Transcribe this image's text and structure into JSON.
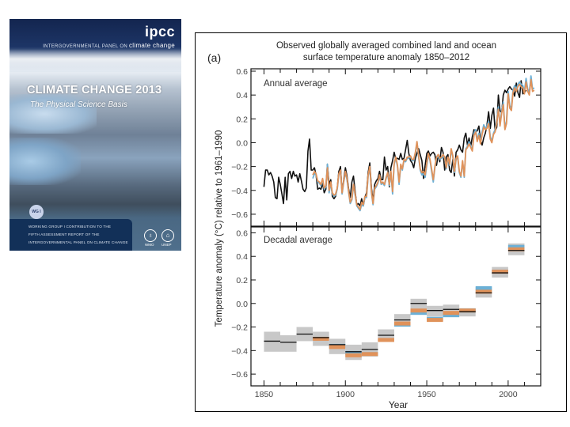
{
  "cover": {
    "org_short": "ipcc",
    "org_full_prefix": "INTERGOVERNMENTAL PANEL ON",
    "org_full_suffix": "climate change",
    "title": "CLIMATE CHANGE 2013",
    "subtitle": "The Physical Science Basis",
    "wg_badge": "WG I",
    "bottom_lines": [
      "WORKING GROUP I CONTRIBUTION TO THE",
      "FIFTH ASSESSMENT REPORT OF THE",
      "INTERGOVERNMENTAL PANEL ON CLIMATE CHANGE"
    ],
    "logos": [
      {
        "symbol": "♁",
        "label": "WMO"
      },
      {
        "symbol": "⌂",
        "label": "UNEP"
      }
    ]
  },
  "chart_data": {
    "panel_label": "(a)",
    "title": "Observed globally averaged combined land and ocean surface temperature anomaly 1850–2012",
    "title_lines": [
      "Observed globally averaged combined land and ocean",
      "surface temperature anomaly 1850–2012"
    ],
    "ylabel": "Temperature anomaly (°C) relative to 1961–1990",
    "xlabel": "Year",
    "xlim": [
      1842,
      2020
    ],
    "x_ticks": [
      1850,
      1900,
      1950,
      2000
    ],
    "colors": {
      "black": "#111111",
      "orange": "#e0925a",
      "blue": "#6cb0d6",
      "band": "#c8c8c8"
    },
    "panels": [
      {
        "type": "line",
        "label": "Annual average",
        "ylim": [
          -0.7,
          0.62
        ],
        "y_ticks": [
          -0.6,
          -0.4,
          -0.2,
          0.0,
          0.2,
          0.4,
          0.6
        ],
        "series": [
          {
            "name": "dataset-black",
            "color_key": "black",
            "x_start": 1850,
            "values": [
              -0.37,
              -0.23,
              -0.23,
              -0.27,
              -0.25,
              -0.28,
              -0.33,
              -0.46,
              -0.47,
              -0.29,
              -0.35,
              -0.43,
              -0.51,
              -0.29,
              -0.48,
              -0.26,
              -0.24,
              -0.3,
              -0.24,
              -0.28,
              -0.27,
              -0.33,
              -0.26,
              -0.32,
              -0.39,
              -0.41,
              -0.38,
              -0.07,
              0.03,
              -0.23,
              -0.23,
              -0.21,
              -0.27,
              -0.39,
              -0.38,
              -0.39,
              -0.34,
              -0.42,
              -0.39,
              -0.18,
              -0.35,
              -0.31,
              -0.45,
              -0.47,
              -0.45,
              -0.38,
              -0.24,
              -0.2,
              -0.42,
              -0.31,
              -0.21,
              -0.28,
              -0.39,
              -0.46,
              -0.33,
              -0.28,
              -0.41,
              -0.52,
              -0.51,
              -0.53,
              -0.47,
              -0.53,
              -0.46,
              -0.42,
              -0.25,
              -0.17,
              -0.38,
              -0.49,
              -0.35,
              -0.32,
              -0.3,
              -0.24,
              -0.31,
              -0.31,
              -0.12,
              -0.23,
              -0.2,
              -0.37,
              -0.21,
              -0.15,
              -0.08,
              -0.14,
              -0.13,
              -0.14,
              -0.09,
              -0.14,
              -0.13,
              -0.06,
              0.02,
              -0.09,
              -0.15,
              -0.17,
              -0.21,
              -0.13,
              -0.09,
              -0.05,
              -0.1,
              -0.15,
              -0.3,
              -0.19,
              -0.09,
              -0.07,
              -0.11,
              -0.09,
              -0.08,
              -0.1,
              -0.19,
              -0.1,
              -0.16,
              -0.04,
              -0.08,
              -0.23,
              -0.12,
              -0.1,
              -0.23,
              -0.25,
              -0.14,
              -0.28,
              -0.08,
              -0.06,
              -0.02,
              -0.06,
              -0.08,
              0.04,
              0.08,
              -0.02,
              0.04,
              -0.03,
              0.05,
              0.11,
              0.09,
              0.1,
              0.14,
              0.02,
              -0.02,
              0.04,
              0.08,
              0.15,
              0.26,
              0.12,
              0.23,
              0.29,
              0.1,
              0.13,
              0.4,
              0.27,
              0.25,
              0.4,
              0.44,
              0.42,
              0.45,
              0.47,
              0.45,
              0.44,
              0.39,
              0.5,
              0.42,
              0.38,
              0.52,
              0.41,
              0.42,
              0.44
            ]
          },
          {
            "name": "dataset-orange",
            "color_key": "orange",
            "x_start": 1880,
            "values": [
              -0.27,
              -0.24,
              -0.26,
              -0.32,
              -0.33,
              -0.35,
              -0.3,
              -0.38,
              -0.36,
              -0.21,
              -0.4,
              -0.33,
              -0.42,
              -0.44,
              -0.43,
              -0.38,
              -0.26,
              -0.23,
              -0.42,
              -0.32,
              -0.24,
              -0.3,
              -0.41,
              -0.5,
              -0.47,
              -0.35,
              -0.43,
              -0.52,
              -0.54,
              -0.56,
              -0.5,
              -0.52,
              -0.45,
              -0.45,
              -0.27,
              -0.2,
              -0.41,
              -0.51,
              -0.38,
              -0.36,
              -0.33,
              -0.27,
              -0.34,
              -0.33,
              -0.35,
              -0.29,
              -0.25,
              -0.35,
              -0.24,
              -0.41,
              -0.17,
              -0.12,
              -0.19,
              -0.33,
              -0.18,
              -0.22,
              -0.14,
              -0.15,
              -0.12,
              -0.12,
              -0.11,
              -0.14,
              -0.14,
              -0.08,
              0.01,
              -0.11,
              -0.22,
              -0.25,
              -0.24,
              -0.27,
              -0.17,
              -0.09,
              -0.14,
              -0.22,
              -0.31,
              -0.2,
              -0.12,
              -0.1,
              -0.13,
              -0.12,
              -0.1,
              -0.12,
              -0.21,
              -0.12,
              -0.18,
              -0.05,
              -0.11,
              -0.24,
              -0.13,
              -0.11,
              -0.24,
              -0.28,
              -0.15,
              -0.28,
              -0.06,
              -0.04,
              -0.01,
              -0.04,
              -0.07,
              0.06,
              0.09,
              0.01,
              0.06,
              -0.01,
              0.07,
              0.13,
              0.11,
              0.12,
              0.16,
              0.03,
              0.0,
              0.07,
              0.09,
              0.17,
              0.28,
              0.14,
              0.25,
              0.32,
              0.11,
              0.16,
              0.41,
              0.29,
              0.27,
              0.42,
              0.46,
              0.43,
              0.47,
              0.49,
              0.47,
              0.46,
              0.41,
              0.51,
              0.43,
              0.4,
              0.53,
              0.43,
              0.44
            ]
          },
          {
            "name": "dataset-blue",
            "color_key": "blue",
            "x_start": 1880,
            "values": [
              -0.3,
              -0.26,
              -0.27,
              -0.33,
              -0.34,
              -0.36,
              -0.31,
              -0.39,
              -0.37,
              -0.18,
              -0.42,
              -0.34,
              -0.43,
              -0.45,
              -0.44,
              -0.39,
              -0.27,
              -0.24,
              -0.43,
              -0.33,
              -0.25,
              -0.31,
              -0.42,
              -0.51,
              -0.48,
              -0.36,
              -0.44,
              -0.53,
              -0.55,
              -0.57,
              -0.52,
              -0.53,
              -0.46,
              -0.46,
              -0.28,
              -0.21,
              -0.42,
              -0.52,
              -0.39,
              -0.37,
              -0.34,
              -0.28,
              -0.35,
              -0.34,
              -0.36,
              -0.3,
              -0.26,
              -0.36,
              -0.25,
              -0.43,
              -0.18,
              -0.13,
              -0.2,
              -0.35,
              -0.19,
              -0.23,
              -0.15,
              -0.16,
              -0.13,
              -0.13,
              -0.12,
              -0.15,
              -0.15,
              -0.09,
              0.0,
              -0.12,
              -0.23,
              -0.27,
              -0.26,
              -0.29,
              -0.19,
              -0.1,
              -0.15,
              -0.24,
              -0.33,
              -0.21,
              -0.13,
              -0.11,
              -0.14,
              -0.13,
              -0.11,
              -0.13,
              -0.22,
              -0.13,
              -0.19,
              -0.06,
              -0.12,
              -0.25,
              -0.14,
              -0.12,
              -0.25,
              -0.29,
              -0.16,
              -0.29,
              -0.05,
              -0.03,
              0.01,
              -0.03,
              -0.06,
              0.08,
              0.11,
              0.02,
              0.08,
              0.0,
              0.09,
              0.15,
              0.12,
              0.14,
              0.18,
              0.05,
              0.01,
              0.08,
              0.11,
              0.19,
              0.3,
              0.15,
              0.27,
              0.34,
              0.12,
              0.18,
              0.43,
              0.31,
              0.29,
              0.44,
              0.48,
              0.45,
              0.49,
              0.51,
              0.49,
              0.48,
              0.43,
              0.54,
              0.45,
              0.42,
              0.56,
              0.45,
              0.46
            ]
          }
        ]
      },
      {
        "type": "decadal",
        "label": "Decadal average",
        "ylim": [
          -0.7,
          0.65
        ],
        "y_ticks": [
          -0.6,
          -0.4,
          -0.2,
          0.0,
          0.2,
          0.4,
          0.6
        ],
        "decades": [
          {
            "start": 1850,
            "black": -0.32,
            "orange": null,
            "blue": null,
            "band": [
              -0.41,
              -0.24
            ]
          },
          {
            "start": 1860,
            "black": -0.33,
            "orange": null,
            "blue": null,
            "band": [
              -0.41,
              -0.27
            ]
          },
          {
            "start": 1870,
            "black": -0.26,
            "orange": null,
            "blue": null,
            "band": [
              -0.32,
              -0.2
            ]
          },
          {
            "start": 1880,
            "black": -0.29,
            "orange": -0.3,
            "blue": null,
            "band": [
              -0.36,
              -0.24
            ]
          },
          {
            "start": 1890,
            "black": -0.35,
            "orange": -0.37,
            "blue": -0.36,
            "band": [
              -0.43,
              -0.3
            ]
          },
          {
            "start": 1900,
            "black": -0.41,
            "orange": -0.44,
            "blue": -0.42,
            "band": [
              -0.48,
              -0.35
            ]
          },
          {
            "start": 1910,
            "black": -0.39,
            "orange": -0.43,
            "blue": -0.43,
            "band": [
              -0.45,
              -0.33
            ]
          },
          {
            "start": 1920,
            "black": -0.27,
            "orange": -0.31,
            "blue": null,
            "band": [
              -0.32,
              -0.22
            ]
          },
          {
            "start": 1930,
            "black": -0.14,
            "orange": -0.17,
            "blue": -0.18,
            "band": [
              -0.19,
              -0.09
            ]
          },
          {
            "start": 1940,
            "black": 0.0,
            "orange": -0.06,
            "blue": -0.08,
            "band": [
              -0.05,
              0.04
            ]
          },
          {
            "start": 1950,
            "black": -0.06,
            "orange": -0.14,
            "blue": -0.13,
            "band": [
              -0.11,
              -0.02
            ]
          },
          {
            "start": 1960,
            "black": -0.05,
            "orange": -0.08,
            "blue": -0.1,
            "band": [
              -0.1,
              -0.01
            ]
          },
          {
            "start": 1970,
            "black": -0.07,
            "orange": -0.06,
            "blue": -0.06,
            "band": [
              -0.11,
              -0.04
            ]
          },
          {
            "start": 1980,
            "black": 0.09,
            "orange": 0.1,
            "blue": 0.13,
            "band": [
              0.05,
              0.14
            ]
          },
          {
            "start": 1990,
            "black": 0.26,
            "orange": 0.27,
            "blue": 0.27,
            "band": [
              0.22,
              0.31
            ]
          },
          {
            "start": 2000,
            "black": 0.45,
            "orange": 0.46,
            "blue": 0.48,
            "band": [
              0.41,
              0.51
            ]
          }
        ]
      }
    ]
  }
}
